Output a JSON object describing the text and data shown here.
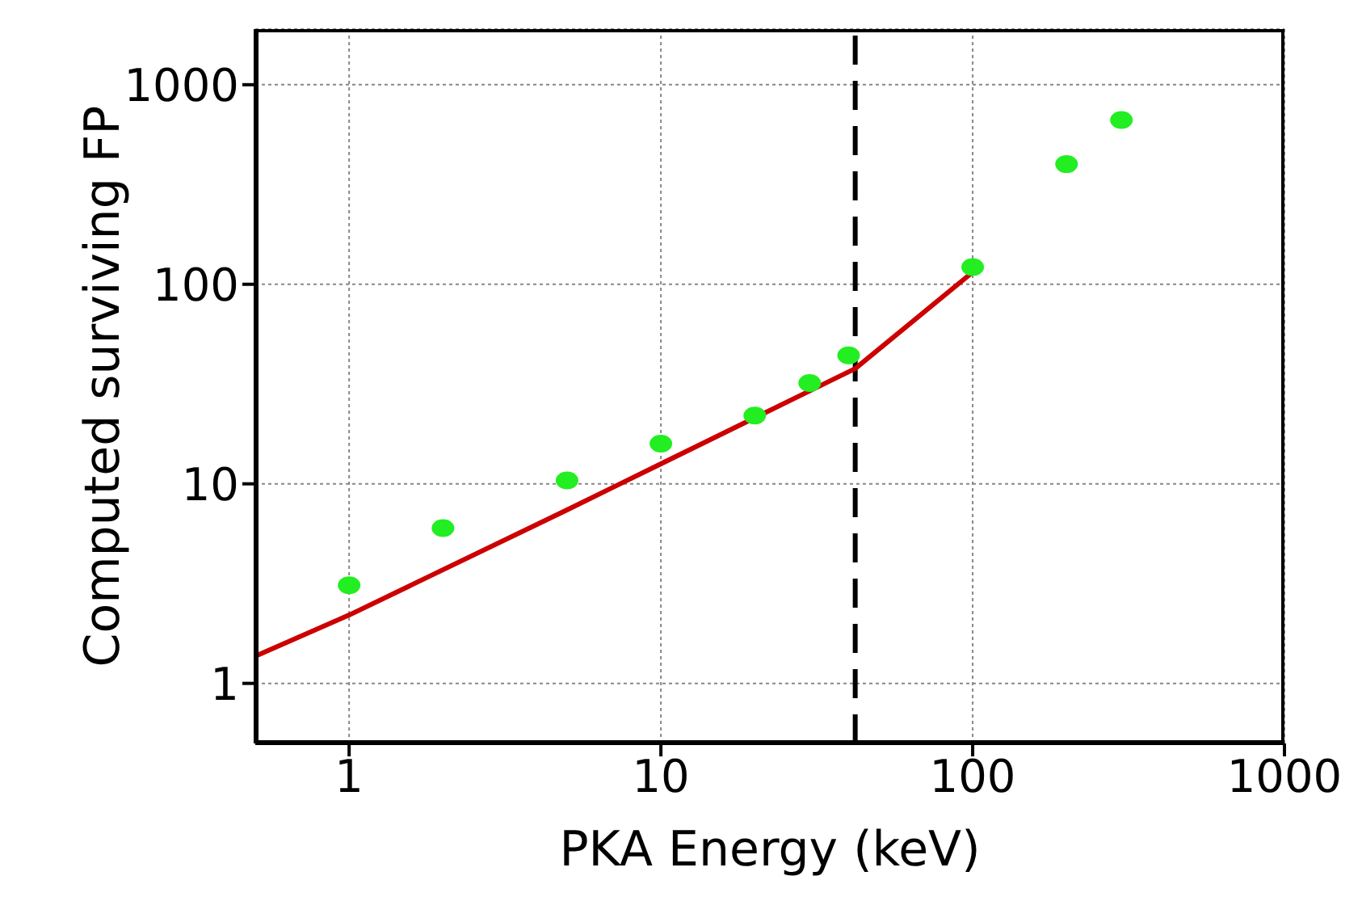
{
  "chart_data": {
    "type": "scatter",
    "xlabel": "PKA Energy (keV)",
    "ylabel": "Computed surviving FP",
    "log": "xy",
    "xlim": [
      0.5,
      1000
    ],
    "ylim": [
      0.5,
      1900
    ],
    "xticks": [
      1,
      10,
      100,
      1000
    ],
    "yticks": [
      1,
      10,
      100,
      1000
    ],
    "grid": true,
    "series": [
      {
        "marker": "circle",
        "color": "#22ee22",
        "x": [
          1,
          2,
          5,
          10,
          20,
          30,
          40,
          100,
          200,
          300
        ],
        "values": [
          3.1,
          6.0,
          10.4,
          15.9,
          22,
          32,
          44,
          122,
          400,
          665
        ]
      },
      {
        "type": "line",
        "color": "#cc0000",
        "x": [
          0.5,
          1,
          5,
          10,
          42,
          100
        ],
        "values": [
          1.37,
          2.2,
          7.4,
          12.6,
          37.8,
          115
        ]
      }
    ],
    "ref_lines": [
      {
        "axis": "x",
        "value": 42,
        "color": "#000000",
        "line_style": "dashed"
      }
    ]
  }
}
